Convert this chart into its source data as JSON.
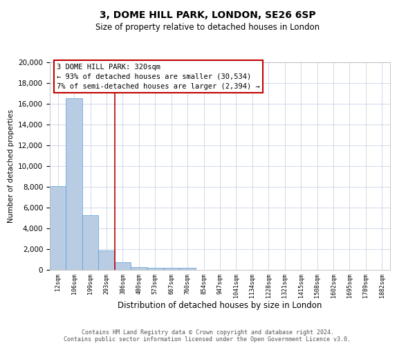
{
  "title": "3, DOME HILL PARK, LONDON, SE26 6SP",
  "subtitle": "Size of property relative to detached houses in London",
  "xlabel": "Distribution of detached houses by size in London",
  "ylabel": "Number of detached properties",
  "footer_line1": "Contains HM Land Registry data © Crown copyright and database right 2024.",
  "footer_line2": "Contains public sector information licensed under the Open Government Licence v3.0.",
  "annotation_line1": "3 DOME HILL PARK: 320sqm",
  "annotation_line2": "← 93% of detached houses are smaller (30,534)",
  "annotation_line3": "7% of semi-detached houses are larger (2,394) →",
  "bar_labels": [
    "12sqm",
    "106sqm",
    "199sqm",
    "293sqm",
    "386sqm",
    "480sqm",
    "573sqm",
    "667sqm",
    "760sqm",
    "854sqm",
    "947sqm",
    "1041sqm",
    "1134sqm",
    "1228sqm",
    "1321sqm",
    "1415sqm",
    "1508sqm",
    "1602sqm",
    "1695sqm",
    "1789sqm",
    "1882sqm"
  ],
  "bar_values": [
    8100,
    16500,
    5300,
    1850,
    750,
    280,
    210,
    200,
    190,
    0,
    0,
    0,
    0,
    0,
    0,
    0,
    0,
    0,
    0,
    0,
    0
  ],
  "bar_color": "#b8cce4",
  "bar_edge_color": "#5b9bd5",
  "ylim": [
    0,
    20000
  ],
  "yticks": [
    0,
    2000,
    4000,
    6000,
    8000,
    10000,
    12000,
    14000,
    16000,
    18000,
    20000
  ],
  "vline_color": "#c00000",
  "vline_x": 3.5,
  "annotation_box_color": "#c00000",
  "grid_color": "#d0d8e8",
  "bg_color": "#ffffff",
  "title_fontsize": 10,
  "subtitle_fontsize": 8.5,
  "xlabel_fontsize": 8.5,
  "ylabel_fontsize": 7.5,
  "ytick_fontsize": 7.5,
  "xtick_fontsize": 6,
  "annotation_fontsize": 7.5,
  "footer_fontsize": 6
}
